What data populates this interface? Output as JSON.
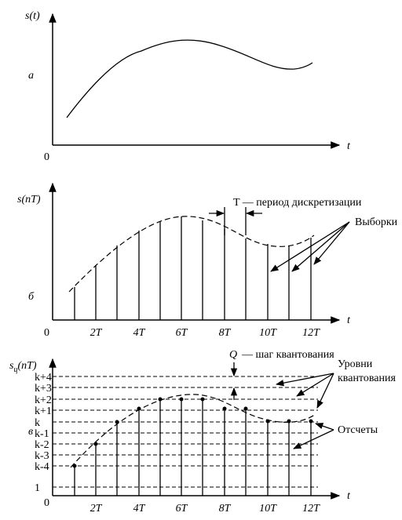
{
  "panels": [
    {
      "label": "а",
      "y_axis": "s(t)",
      "x_axis": "t",
      "origin": "0"
    },
    {
      "label": "б",
      "y_axis": "s(nT)",
      "x_axis": "t",
      "origin": "0",
      "period_note": "T — период дискретизации",
      "samples_note": "Выборки",
      "x_ticks": [
        "2T",
        "4T",
        "6T",
        "8T",
        "10T",
        "12T"
      ]
    },
    {
      "label": "в",
      "y_axis": {
        "base": "s",
        "sub": "ц",
        "arg": "(nT)"
      },
      "x_axis": "t",
      "origin": "0",
      "step_note": {
        "symbol": "Q",
        "text": "— шаг квантования"
      },
      "levels_note": [
        "Уровни",
        "квантования"
      ],
      "samples_note": "Отсчеты",
      "levels": [
        "k+4",
        "k+3",
        "k+2",
        "k+1",
        "k",
        "k-1",
        "k-2",
        "k-3",
        "k-4",
        "1"
      ],
      "x_ticks": [
        "2T",
        "4T",
        "6T",
        "8T",
        "10T",
        "12T"
      ]
    }
  ]
}
